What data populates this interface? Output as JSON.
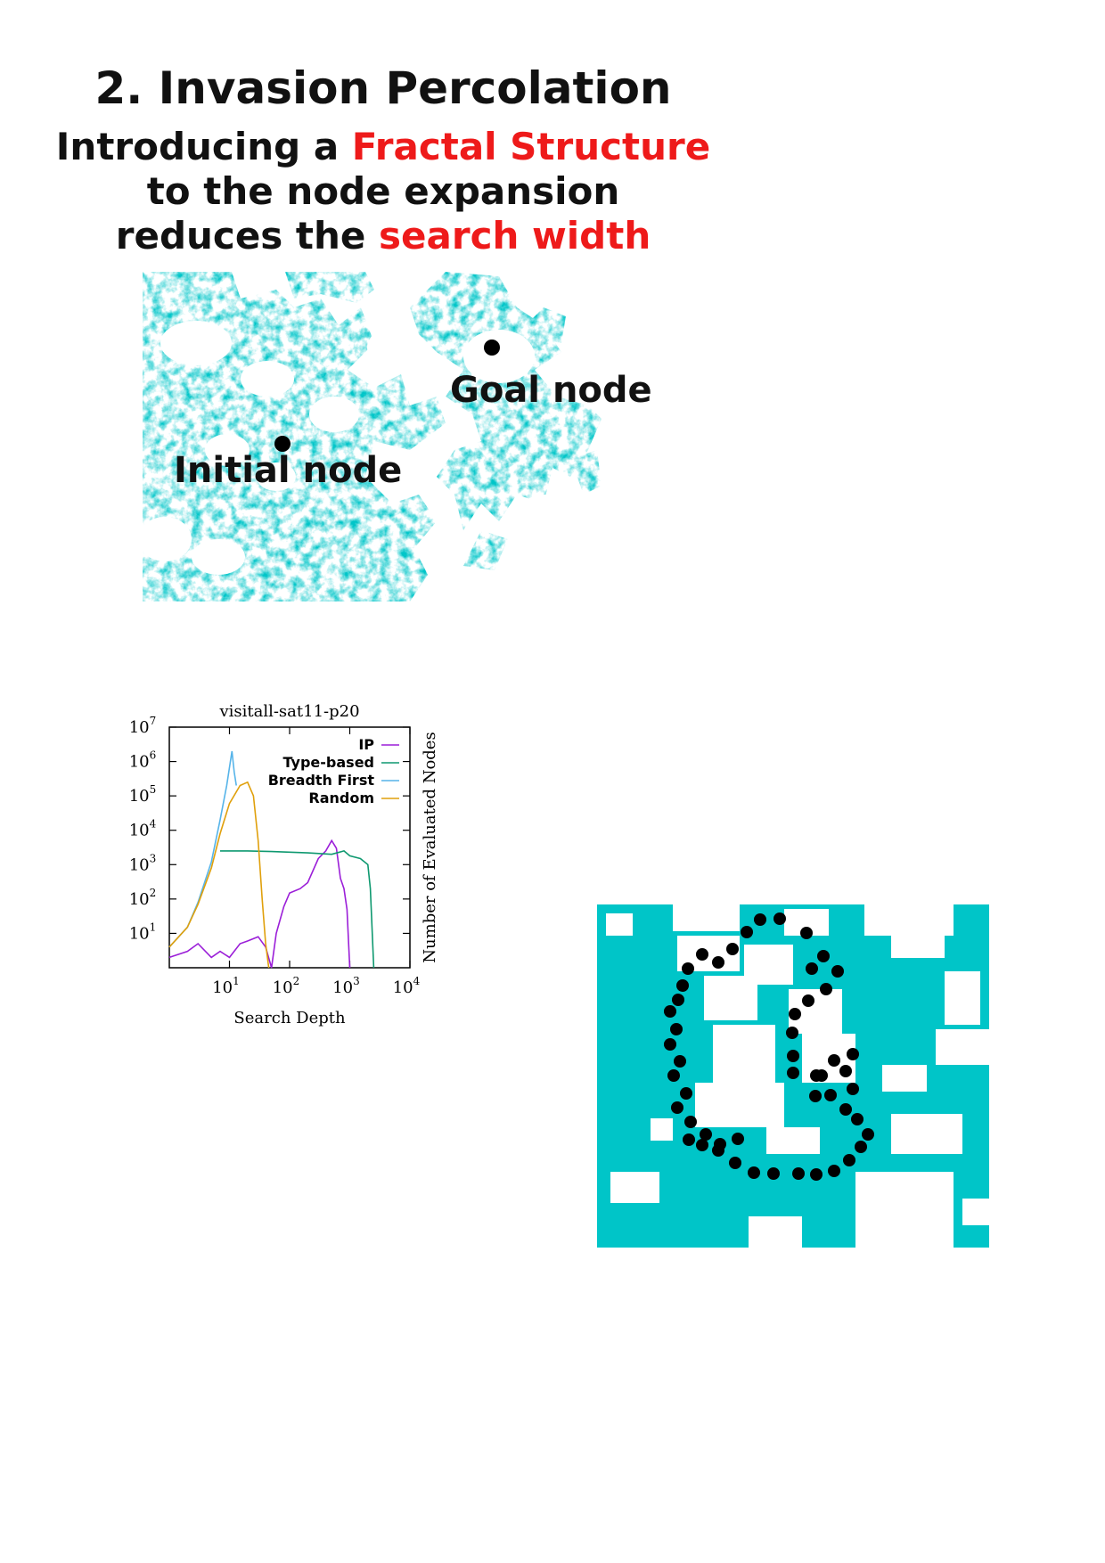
{
  "heading": {
    "title": "2. Invasion Percolation",
    "line1_a": "Introducing a ",
    "line1_b": "Fractal Structure",
    "line2": "to  the node expansion",
    "line3_a": "reduces the ",
    "line3_b": "search width"
  },
  "figure_map": {
    "goal_label": "Goal node",
    "initial_label": "Initial node"
  },
  "colors": {
    "cluster": "#00c5c8",
    "highlight_red": "#ee1a1a",
    "ip": "#9b1fd8",
    "type_based": "#0f9970",
    "breadth_first": "#56b4e9",
    "random": "#e0a00c"
  },
  "chart_data": {
    "type": "line",
    "title": "visitall-sat11-p20",
    "xlabel": "Search Depth",
    "ylabel": "Number of Evaluated Nodes",
    "x_scale": "log",
    "y_scale": "log",
    "xlim": [
      1,
      10000
    ],
    "ylim": [
      1,
      10000000
    ],
    "x_ticks": [
      "10",
      "10",
      "10",
      "10"
    ],
    "x_tick_exp": [
      "1",
      "2",
      "3",
      "4"
    ],
    "y_ticks": [
      "10",
      "10",
      "10",
      "10",
      "10",
      "10",
      "10"
    ],
    "y_tick_exp": [
      "1",
      "2",
      "3",
      "4",
      "5",
      "6",
      "7"
    ],
    "legend_position": "top-right",
    "grid": false,
    "series": [
      {
        "name": "IP",
        "x": [
          1,
          2,
          3,
          5,
          7,
          10,
          15,
          20,
          30,
          40,
          50,
          60,
          80,
          100,
          150,
          200,
          300,
          400,
          500,
          600,
          700,
          800,
          900,
          1000
        ],
        "y": [
          2,
          3,
          5,
          2,
          3,
          2,
          5,
          6,
          8,
          4,
          1,
          10,
          60,
          150,
          200,
          300,
          1500,
          2500,
          5000,
          3000,
          400,
          200,
          50,
          1
        ]
      },
      {
        "name": "Type-based",
        "x": [
          7,
          10,
          20,
          50,
          100,
          200,
          500,
          800,
          1000,
          1500,
          2000,
          2200,
          2500
        ],
        "y": [
          2500,
          2500,
          2500,
          2400,
          2300,
          2200,
          2000,
          2500,
          1800,
          1500,
          1000,
          200,
          1
        ]
      },
      {
        "name": "Breadth First",
        "x": [
          1,
          2,
          3,
          5,
          7,
          9,
          11,
          12,
          13
        ],
        "y": [
          4,
          15,
          80,
          1200,
          20000,
          200000,
          2000000,
          500000,
          200000
        ]
      },
      {
        "name": "Random",
        "x": [
          1,
          2,
          3,
          5,
          7,
          10,
          15,
          20,
          25,
          30,
          35,
          40,
          45
        ],
        "y": [
          4,
          15,
          70,
          800,
          8000,
          60000,
          200000,
          250000,
          100000,
          5000,
          100,
          5,
          1
        ]
      }
    ]
  }
}
